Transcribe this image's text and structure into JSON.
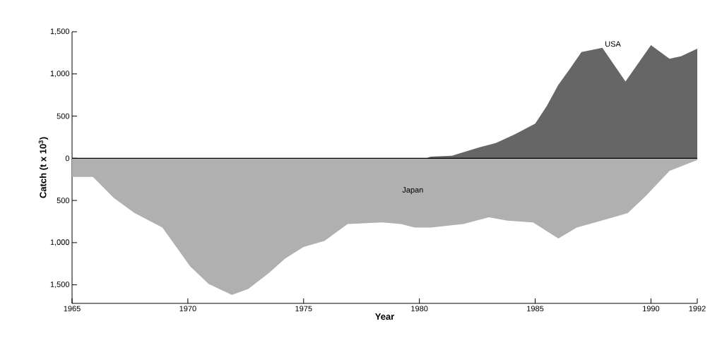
{
  "chart_data": {
    "type": "area",
    "xlabel": "Year",
    "ylabel": "Catch (t x 10$^{3}$)",
    "xlim": [
      1965,
      1992
    ],
    "xticks": [
      1965,
      1970,
      1975,
      1980,
      1985,
      1990,
      1992
    ],
    "ylim": [
      -1720,
      1500
    ],
    "yticks": [
      {
        "value": 1500,
        "label": "1,500"
      },
      {
        "value": 1000,
        "label": "1,000"
      },
      500,
      0,
      {
        "value": -500,
        "label": "500"
      },
      {
        "value": -1000,
        "label": "1,000"
      },
      {
        "value": -1500,
        "label": "1,500"
      }
    ],
    "ref_lines": [
      {
        "axis": "y",
        "value": 0,
        "color": "#000000"
      }
    ],
    "series": [
      {
        "name": "USA",
        "color": "#666666",
        "x": [
          1980.3,
          1980.5,
          1981.4,
          1982,
          1982.6,
          1983.3,
          1984.1,
          1985,
          1985.5,
          1986,
          1986.5,
          1987,
          1987.9,
          1988.9,
          1990,
          1990.8,
          1991.3,
          1992
        ],
        "values": [
          0,
          20,
          30,
          80,
          130,
          180,
          280,
          410,
          620,
          870,
          1060,
          1260,
          1310,
          910,
          1340,
          1180,
          1210,
          1300
        ]
      },
      {
        "name": "Japan",
        "color": "#b0b0b0",
        "x": [
          1965,
          1965.9,
          1966.8,
          1967.7,
          1968.9,
          1969.5,
          1970.1,
          1970.9,
          1971.9,
          1972.6,
          1973.5,
          1974.2,
          1975,
          1975.9,
          1976.9,
          1978.4,
          1979.2,
          1979.8,
          1980.5,
          1981.9,
          1983,
          1983.8,
          1984.9,
          1986,
          1986.8,
          1988,
          1989,
          1989.8,
          1990.8,
          1992
        ],
        "values": [
          -220,
          -220,
          -470,
          -650,
          -820,
          -1050,
          -1280,
          -1490,
          -1620,
          -1550,
          -1360,
          -1190,
          -1050,
          -980,
          -780,
          -760,
          -780,
          -820,
          -820,
          -780,
          -700,
          -740,
          -760,
          -950,
          -820,
          -730,
          -650,
          -440,
          -150,
          -20
        ]
      }
    ]
  }
}
